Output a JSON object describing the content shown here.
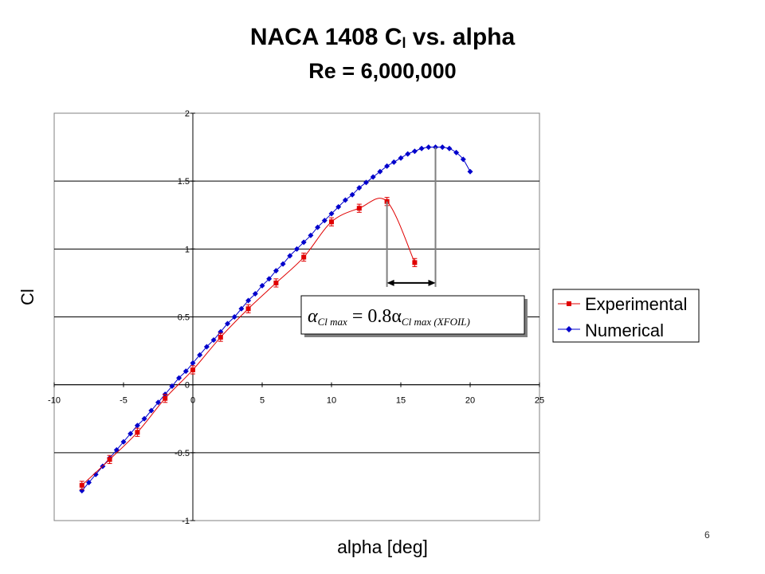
{
  "page": {
    "number": "6"
  },
  "chart_data": {
    "type": "line",
    "title": "NACA 1408 C",
    "title_subscript": "l",
    "title_rest": " vs. alpha",
    "subtitle": "Re = 6,000,000",
    "xlabel": "alpha [deg]",
    "ylabel": "Cl",
    "xlim": [
      -10,
      25
    ],
    "ylim": [
      -1,
      2
    ],
    "x_ticks": [
      "-10",
      "-5",
      "0",
      "5",
      "10",
      "15",
      "20",
      "25"
    ],
    "y_ticks": [
      "-1",
      "-0.5",
      "0",
      "0.5",
      "1",
      "1.5",
      "2"
    ],
    "grid": "horizontal",
    "legend_position": "right",
    "series": [
      {
        "name": "Experimental",
        "color": "#e00000",
        "marker": "square",
        "error_bar": 0.03,
        "x": [
          -8,
          -6,
          -4,
          -2,
          0,
          2,
          4,
          6,
          8,
          10,
          12,
          14,
          16
        ],
        "y": [
          -0.74,
          -0.55,
          -0.35,
          -0.1,
          0.11,
          0.35,
          0.56,
          0.75,
          0.94,
          1.2,
          1.3,
          1.35,
          0.9
        ]
      },
      {
        "name": "Numerical",
        "color": "#0000cc",
        "marker": "diamond",
        "x": [
          -8,
          -7.5,
          -7,
          -6.5,
          -6,
          -5.5,
          -5,
          -4.5,
          -4,
          -3.5,
          -3,
          -2.5,
          -2,
          -1.5,
          -1,
          -0.5,
          0,
          0.5,
          1,
          1.5,
          2,
          2.5,
          3,
          3.5,
          4,
          4.5,
          5,
          5.5,
          6,
          6.5,
          7,
          7.5,
          8,
          8.5,
          9,
          9.5,
          10,
          10.5,
          11,
          11.5,
          12,
          12.5,
          13,
          13.5,
          14,
          14.5,
          15,
          15.5,
          16,
          16.5,
          17,
          17.5,
          18,
          18.5,
          19,
          19.5,
          20
        ],
        "y": [
          -0.78,
          -0.72,
          -0.66,
          -0.6,
          -0.54,
          -0.48,
          -0.42,
          -0.36,
          -0.3,
          -0.25,
          -0.19,
          -0.13,
          -0.07,
          -0.01,
          0.05,
          0.1,
          0.16,
          0.22,
          0.28,
          0.33,
          0.39,
          0.45,
          0.5,
          0.56,
          0.62,
          0.67,
          0.73,
          0.78,
          0.84,
          0.89,
          0.95,
          1.0,
          1.05,
          1.1,
          1.16,
          1.21,
          1.26,
          1.31,
          1.36,
          1.4,
          1.45,
          1.49,
          1.53,
          1.57,
          1.61,
          1.64,
          1.67,
          1.7,
          1.72,
          1.74,
          1.75,
          1.75,
          1.75,
          1.74,
          1.71,
          1.66,
          1.57
        ]
      }
    ],
    "annotation": {
      "formula_parts": [
        "α",
        "Cl max",
        " = 0.8α",
        "Cl max (XFOIL)"
      ],
      "arrow_from_x": 14,
      "arrow_to_x": 17.5,
      "arrow_y": 0.75
    }
  }
}
